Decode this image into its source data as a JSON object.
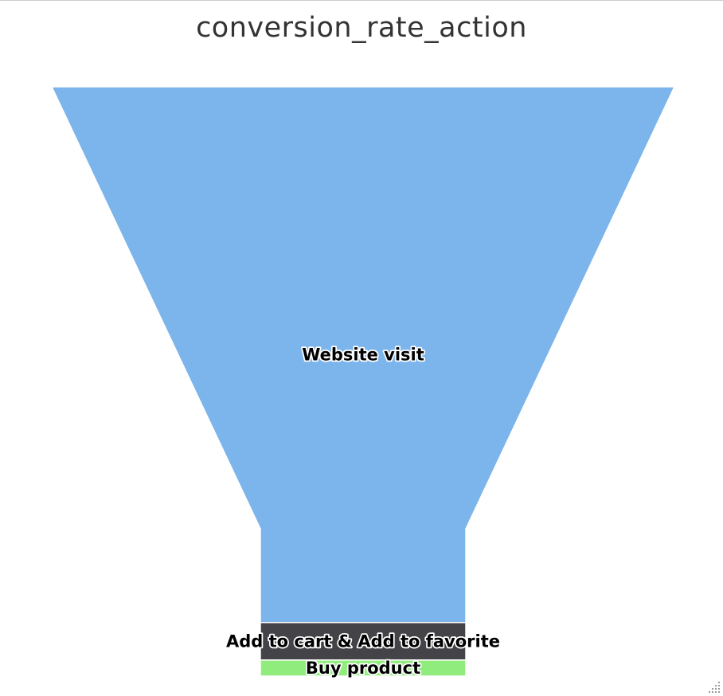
{
  "chart_data": {
    "type": "funnel",
    "title": "conversion_rate_action",
    "categories": [
      "Website visit",
      "Add to cart & Add to favorite",
      "Buy product"
    ],
    "values": [
      100,
      7,
      3
    ],
    "colors": [
      "#7cb5ec",
      "#434348",
      "#90ed7d"
    ],
    "neck_width_fraction": 0.33,
    "neck_height_fraction": 0.25
  },
  "ui": {
    "resize_grip_icon": "resize-grip-icon"
  }
}
